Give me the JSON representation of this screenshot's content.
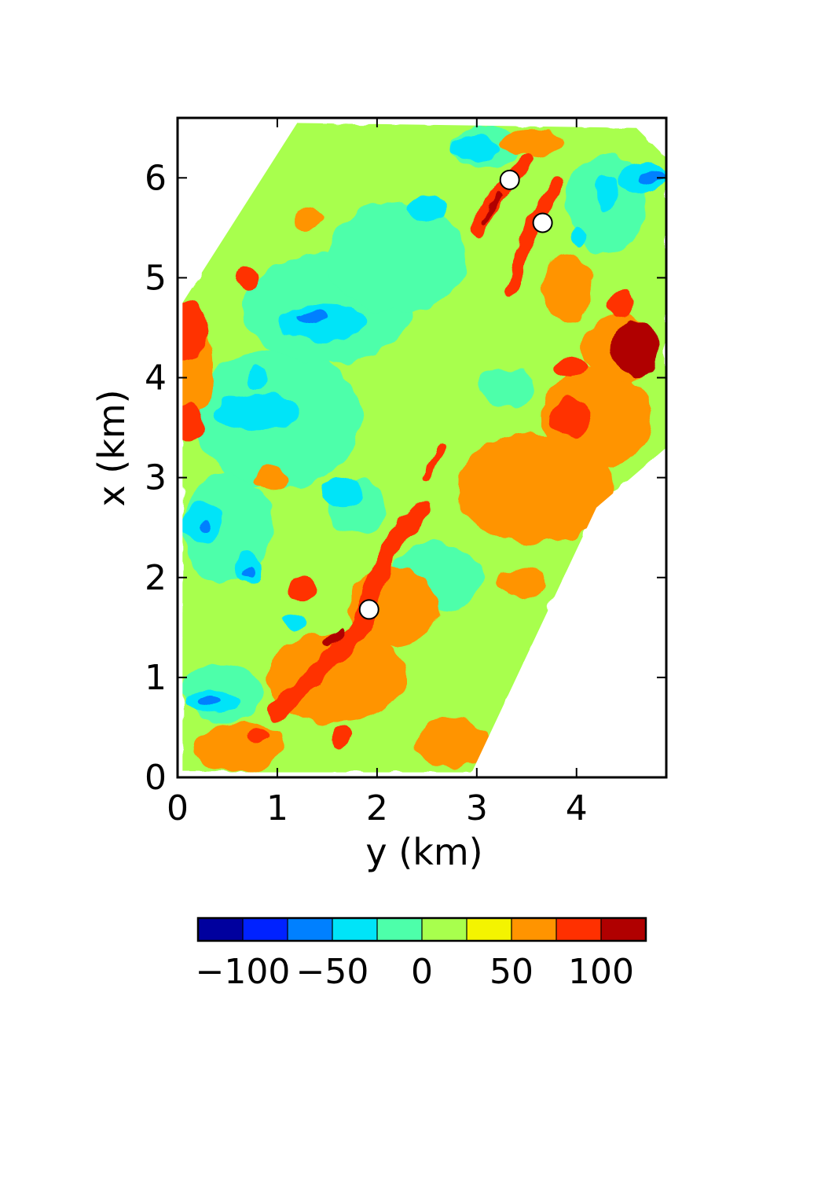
{
  "chart_data": {
    "type": "heatmap",
    "title": "",
    "xlabel": "y (km)",
    "ylabel": "x (km)",
    "xlim": [
      0,
      4.9
    ],
    "ylim": [
      0,
      6.6
    ],
    "xticks": [
      0,
      1,
      2,
      3,
      4
    ],
    "yticks": [
      0,
      1,
      2,
      3,
      4,
      5,
      6
    ],
    "x_tick_labels": [
      "0",
      "1",
      "2",
      "3",
      "4"
    ],
    "y_tick_labels": [
      "0",
      "1",
      "2",
      "3",
      "4",
      "5",
      "6"
    ],
    "grid": false,
    "colorbar": {
      "placement": "bottom",
      "range": [
        -125,
        125
      ],
      "boundaries": [
        -125,
        -100,
        -75,
        -50,
        -25,
        0,
        25,
        50,
        75,
        100,
        125
      ],
      "colors": [
        "#00009e",
        "#0022ff",
        "#0080ff",
        "#00e4f8",
        "#4dffaa",
        "#a8ff4d",
        "#f4f400",
        "#ff9400",
        "#ff3000",
        "#b00000"
      ],
      "ticks": [
        -100,
        -50,
        0,
        50,
        100
      ],
      "tick_labels": [
        "−100",
        "−50",
        "0",
        "50",
        "100"
      ]
    },
    "domain_outline": [
      [
        0.05,
        0.05
      ],
      [
        2.95,
        0.05
      ],
      [
        4.2,
        2.7
      ],
      [
        4.9,
        3.3
      ],
      [
        4.9,
        6.2
      ],
      [
        4.6,
        6.5
      ],
      [
        1.2,
        6.55
      ],
      [
        0.05,
        4.75
      ]
    ],
    "field_features": [
      {
        "shape": "ridge",
        "level": 75,
        "points": [
          [
            1.0,
            0.65
          ],
          [
            1.5,
            1.15
          ],
          [
            1.85,
            1.5
          ],
          [
            1.95,
            1.9
          ],
          [
            2.2,
            2.4
          ],
          [
            2.45,
            2.7
          ]
        ],
        "width": 0.18
      },
      {
        "shape": "ridge",
        "level": 75,
        "points": [
          [
            2.5,
            3.0
          ],
          [
            2.65,
            3.3
          ]
        ],
        "width": 0.08
      },
      {
        "shape": "ridge",
        "level": 75,
        "points": [
          [
            3.0,
            5.5
          ],
          [
            3.3,
            5.95
          ],
          [
            3.5,
            6.15
          ]
        ],
        "width": 0.12
      },
      {
        "shape": "ridge",
        "level": 75,
        "points": [
          [
            3.35,
            4.9
          ],
          [
            3.55,
            5.5
          ],
          [
            3.8,
            5.95
          ]
        ],
        "width": 0.14
      },
      {
        "shape": "ridge",
        "level": 100,
        "points": [
          [
            1.5,
            1.35
          ],
          [
            1.65,
            1.45
          ]
        ],
        "width": 0.08
      },
      {
        "shape": "ridge",
        "level": 100,
        "points": [
          [
            3.05,
            5.55
          ],
          [
            3.25,
            5.85
          ]
        ],
        "width": 0.05
      },
      {
        "shape": "blob",
        "level": 100,
        "center": [
          4.6,
          4.3
        ],
        "r": [
          0.25,
          0.3
        ]
      },
      {
        "shape": "blob",
        "level": 125,
        "center": [
          4.65,
          4.35
        ],
        "r": [
          0.08,
          0.1
        ]
      },
      {
        "shape": "blob",
        "level": 75,
        "center": [
          0.1,
          4.45
        ],
        "r": [
          0.2,
          0.3
        ]
      },
      {
        "shape": "blob",
        "level": 75,
        "center": [
          0.12,
          3.55
        ],
        "r": [
          0.15,
          0.2
        ]
      },
      {
        "shape": "blob",
        "level": 75,
        "center": [
          3.95,
          3.6
        ],
        "r": [
          0.22,
          0.18
        ]
      },
      {
        "shape": "blob",
        "level": 75,
        "center": [
          4.45,
          4.75
        ],
        "r": [
          0.12,
          0.15
        ]
      },
      {
        "shape": "blob",
        "level": 75,
        "center": [
          3.95,
          4.1
        ],
        "r": [
          0.15,
          0.1
        ]
      },
      {
        "shape": "blob",
        "level": 75,
        "center": [
          0.7,
          5.0
        ],
        "r": [
          0.12,
          0.12
        ]
      },
      {
        "shape": "blob",
        "level": 75,
        "center": [
          1.25,
          1.9
        ],
        "r": [
          0.14,
          0.1
        ]
      },
      {
        "shape": "blob",
        "level": 75,
        "center": [
          0.8,
          0.4
        ],
        "r": [
          0.1,
          0.08
        ]
      },
      {
        "shape": "blob",
        "level": 75,
        "center": [
          1.65,
          0.4
        ],
        "r": [
          0.1,
          0.1
        ]
      },
      {
        "shape": "blob",
        "level": 50,
        "center": [
          3.6,
          2.9
        ],
        "r": [
          0.8,
          0.55
        ]
      },
      {
        "shape": "blob",
        "level": 50,
        "center": [
          4.2,
          3.6
        ],
        "r": [
          0.55,
          0.5
        ]
      },
      {
        "shape": "blob",
        "level": 50,
        "center": [
          4.45,
          4.3
        ],
        "r": [
          0.4,
          0.35
        ]
      },
      {
        "shape": "blob",
        "level": 50,
        "center": [
          1.6,
          1.0
        ],
        "r": [
          0.7,
          0.45
        ]
      },
      {
        "shape": "blob",
        "level": 50,
        "center": [
          2.15,
          1.7
        ],
        "r": [
          0.45,
          0.4
        ]
      },
      {
        "shape": "blob",
        "level": 50,
        "center": [
          0.6,
          0.3
        ],
        "r": [
          0.45,
          0.25
        ]
      },
      {
        "shape": "blob",
        "level": 50,
        "center": [
          2.75,
          0.35
        ],
        "r": [
          0.35,
          0.25
        ]
      },
      {
        "shape": "blob",
        "level": 50,
        "center": [
          0.15,
          4.1
        ],
        "r": [
          0.2,
          0.5
        ]
      },
      {
        "shape": "blob",
        "level": 50,
        "center": [
          3.9,
          4.9
        ],
        "r": [
          0.25,
          0.35
        ]
      },
      {
        "shape": "blob",
        "level": 50,
        "center": [
          3.55,
          6.35
        ],
        "r": [
          0.3,
          0.15
        ]
      },
      {
        "shape": "blob",
        "level": 50,
        "center": [
          0.95,
          3.0
        ],
        "r": [
          0.15,
          0.12
        ]
      },
      {
        "shape": "blob",
        "level": 50,
        "center": [
          3.45,
          1.95
        ],
        "r": [
          0.25,
          0.15
        ]
      },
      {
        "shape": "blob",
        "level": 50,
        "center": [
          1.3,
          5.6
        ],
        "r": [
          0.15,
          0.1
        ]
      },
      {
        "shape": "blob",
        "level": -25,
        "center": [
          1.0,
          3.6
        ],
        "r": [
          0.85,
          0.7
        ]
      },
      {
        "shape": "blob",
        "level": -25,
        "center": [
          1.5,
          4.7
        ],
        "r": [
          0.85,
          0.55
        ]
      },
      {
        "shape": "blob",
        "level": -25,
        "center": [
          2.2,
          5.2
        ],
        "r": [
          0.7,
          0.55
        ]
      },
      {
        "shape": "blob",
        "level": -25,
        "center": [
          0.5,
          2.5
        ],
        "r": [
          0.45,
          0.55
        ]
      },
      {
        "shape": "blob",
        "level": -25,
        "center": [
          0.45,
          0.85
        ],
        "r": [
          0.4,
          0.3
        ]
      },
      {
        "shape": "blob",
        "level": -25,
        "center": [
          2.6,
          2.0
        ],
        "r": [
          0.45,
          0.35
        ]
      },
      {
        "shape": "blob",
        "level": -25,
        "center": [
          3.3,
          3.9
        ],
        "r": [
          0.3,
          0.2
        ]
      },
      {
        "shape": "blob",
        "level": -25,
        "center": [
          1.8,
          2.7
        ],
        "r": [
          0.3,
          0.25
        ]
      },
      {
        "shape": "blob",
        "level": -25,
        "center": [
          4.3,
          5.75
        ],
        "r": [
          0.4,
          0.5
        ]
      },
      {
        "shape": "blob",
        "level": -25,
        "center": [
          3.1,
          6.3
        ],
        "r": [
          0.35,
          0.2
        ]
      },
      {
        "shape": "blob",
        "level": -50,
        "center": [
          0.8,
          3.65
        ],
        "r": [
          0.45,
          0.18
        ]
      },
      {
        "shape": "blob",
        "level": -50,
        "center": [
          1.45,
          4.55
        ],
        "r": [
          0.45,
          0.18
        ]
      },
      {
        "shape": "blob",
        "level": -50,
        "center": [
          0.25,
          2.55
        ],
        "r": [
          0.2,
          0.2
        ]
      },
      {
        "shape": "blob",
        "level": -50,
        "center": [
          0.7,
          2.1
        ],
        "r": [
          0.15,
          0.15
        ]
      },
      {
        "shape": "blob",
        "level": -50,
        "center": [
          0.35,
          0.75
        ],
        "r": [
          0.3,
          0.12
        ]
      },
      {
        "shape": "blob",
        "level": -50,
        "center": [
          1.65,
          2.85
        ],
        "r": [
          0.2,
          0.15
        ]
      },
      {
        "shape": "blob",
        "level": -50,
        "center": [
          2.5,
          5.7
        ],
        "r": [
          0.2,
          0.15
        ]
      },
      {
        "shape": "blob",
        "level": -50,
        "center": [
          3.0,
          6.3
        ],
        "r": [
          0.25,
          0.12
        ]
      },
      {
        "shape": "blob",
        "level": -50,
        "center": [
          4.65,
          6.0
        ],
        "r": [
          0.25,
          0.15
        ]
      },
      {
        "shape": "blob",
        "level": -50,
        "center": [
          4.3,
          5.85
        ],
        "r": [
          0.12,
          0.18
        ]
      },
      {
        "shape": "blob",
        "level": -50,
        "center": [
          4.0,
          5.4
        ],
        "r": [
          0.08,
          0.1
        ]
      },
      {
        "shape": "blob",
        "level": -50,
        "center": [
          0.8,
          4.0
        ],
        "r": [
          0.1,
          0.12
        ]
      },
      {
        "shape": "blob",
        "level": -50,
        "center": [
          1.15,
          1.55
        ],
        "r": [
          0.12,
          0.08
        ]
      },
      {
        "shape": "blob",
        "level": -75,
        "center": [
          1.35,
          4.6
        ],
        "r": [
          0.15,
          0.06
        ]
      },
      {
        "shape": "blob",
        "level": -75,
        "center": [
          0.3,
          0.75
        ],
        "r": [
          0.12,
          0.05
        ]
      },
      {
        "shape": "blob",
        "level": -75,
        "center": [
          4.75,
          6.0
        ],
        "r": [
          0.12,
          0.06
        ]
      },
      {
        "shape": "blob",
        "level": -75,
        "center": [
          0.7,
          2.05
        ],
        "r": [
          0.06,
          0.06
        ]
      },
      {
        "shape": "blob",
        "level": -75,
        "center": [
          0.25,
          2.5
        ],
        "r": [
          0.06,
          0.06
        ]
      }
    ],
    "markers": [
      {
        "y_km": 1.92,
        "x_km": 1.68
      },
      {
        "y_km": 3.33,
        "x_km": 5.98
      },
      {
        "y_km": 3.66,
        "x_km": 5.55
      }
    ]
  }
}
